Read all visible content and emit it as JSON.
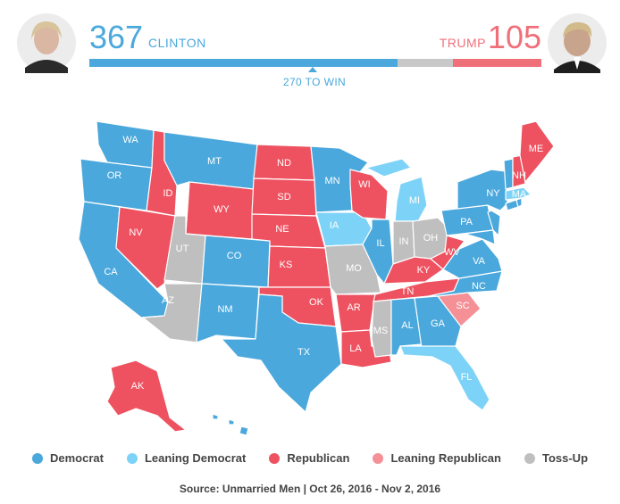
{
  "header": {
    "dem_count": "367",
    "dem_name": "CLINTON",
    "rep_count": "105",
    "rep_name": "TRUMP",
    "to_win": "270 TO WIN"
  },
  "bar": {
    "total": 538,
    "dem": 367,
    "toss": 66,
    "rep": 105
  },
  "colors": {
    "democrat": "#4aa8dc",
    "leaning_democrat": "#7dd3f7",
    "republican": "#ee5260",
    "leaning_republican": "#f49096",
    "toss_up": "#bfbfbf"
  },
  "legend": [
    {
      "key": "democrat",
      "label": "Democrat"
    },
    {
      "key": "leaning_democrat",
      "label": "Leaning Democrat"
    },
    {
      "key": "republican",
      "label": "Republican"
    },
    {
      "key": "leaning_republican",
      "label": "Leaning Republican"
    },
    {
      "key": "toss_up",
      "label": "Toss-Up"
    }
  ],
  "states": {
    "WA": "democrat",
    "OR": "democrat",
    "CA": "democrat",
    "ID": "republican",
    "NV": "republican",
    "MT": "democrat",
    "WY": "republican",
    "UT": "toss_up",
    "AZ": "toss_up",
    "CO": "democrat",
    "NM": "democrat",
    "ND": "republican",
    "SD": "republican",
    "NE": "republican",
    "KS": "republican",
    "OK": "republican",
    "TX": "democrat",
    "MN": "democrat",
    "IA": "leaning_democrat",
    "MO": "toss_up",
    "AR": "republican",
    "LA": "republican",
    "WI": "republican",
    "IL": "democrat",
    "MI": "leaning_democrat",
    "IN": "toss_up",
    "OH": "toss_up",
    "KY": "republican",
    "TN": "republican",
    "MS": "toss_up",
    "AL": "democrat",
    "GA": "democrat",
    "FL": "leaning_democrat",
    "SC": "leaning_republican",
    "NC": "democrat",
    "VA": "democrat",
    "WV": "republican",
    "PA": "democrat",
    "NY": "democrat",
    "ME": "republican",
    "NH": "republican",
    "VT": "democrat",
    "MA": "leaning_democrat",
    "AK": "republican",
    "HI": "democrat",
    "NJ": "democrat",
    "MD": "democrat",
    "DE": "democrat",
    "CT": "democrat",
    "RI": "democrat",
    "DC": "democrat"
  },
  "source": "Source: Unmarried Men | Oct 26, 2016 - Nov 2, 2016"
}
